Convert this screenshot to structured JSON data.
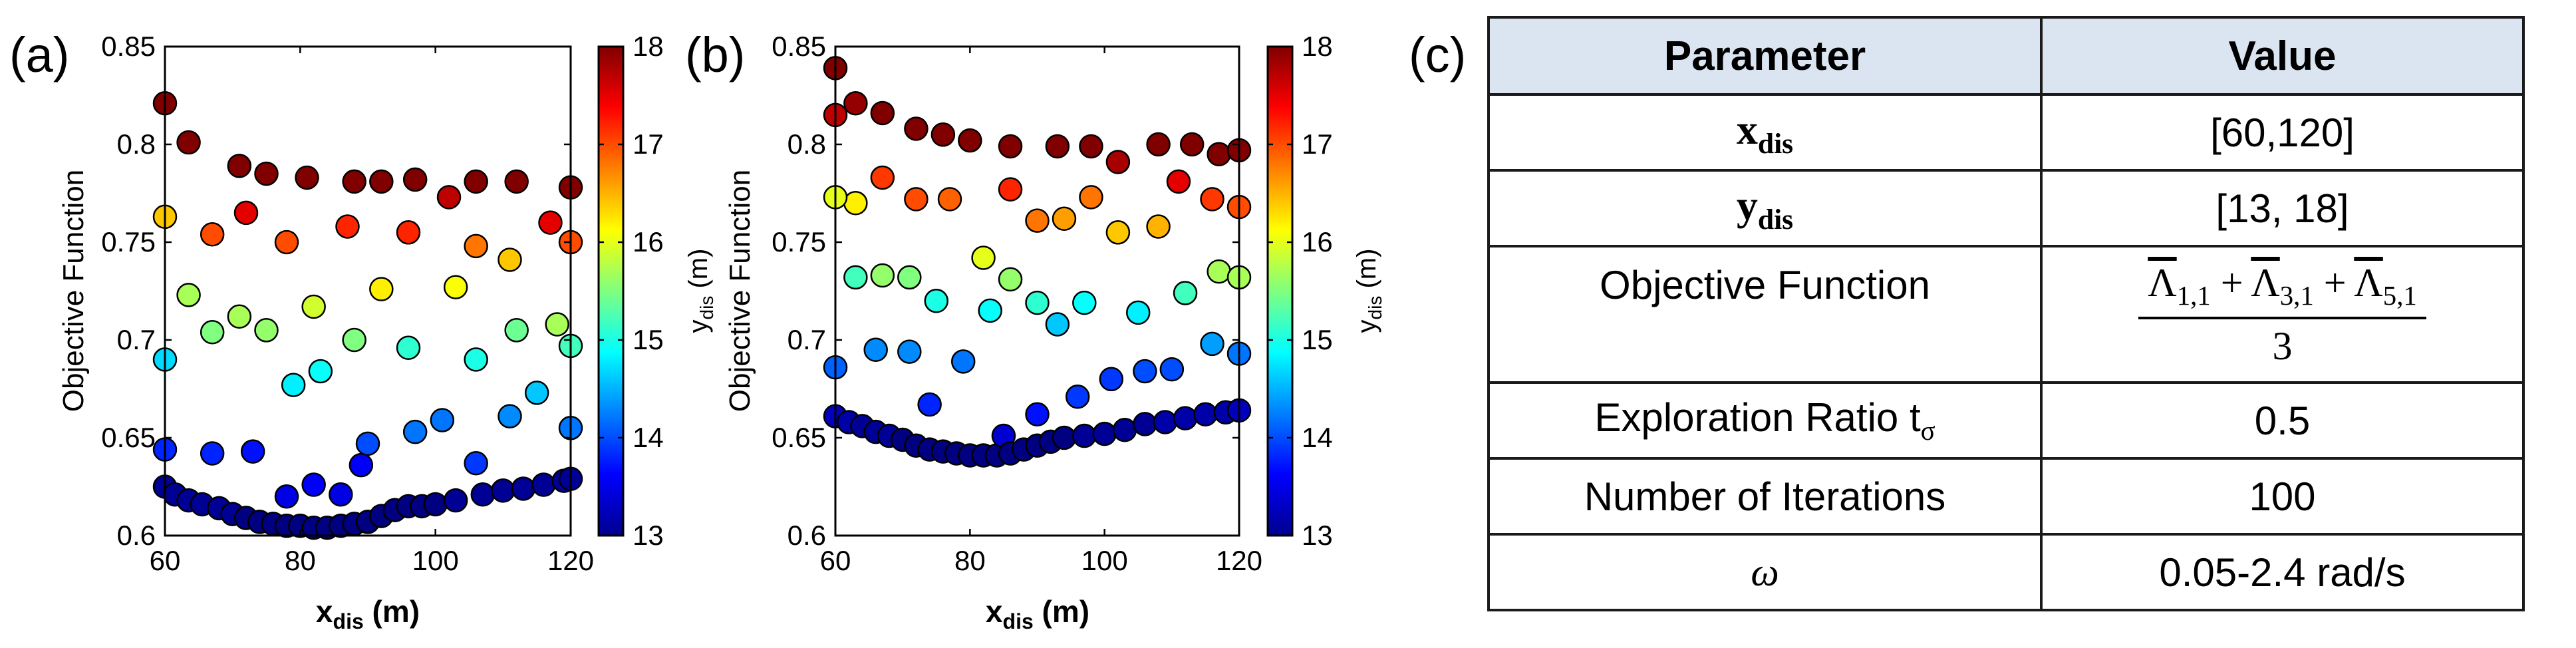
{
  "panel_labels": {
    "a": "(a)",
    "b": "(b)",
    "c": "(c)"
  },
  "colors": {
    "colormap": "jet",
    "marker_edge": "#000000",
    "table_header_bg": "#dae5f1"
  },
  "chart_data": [
    {
      "type": "scatter",
      "panel": "(a)",
      "xlabel_main": "x",
      "xlabel_sub": "dis",
      "xlabel_unit": " (m)",
      "ylabel": "Objective Function",
      "xlim": [
        60,
        120
      ],
      "ylim": [
        0.6,
        0.85
      ],
      "xticks": [
        60,
        80,
        100,
        120
      ],
      "xtick_labels": [
        "60",
        "80",
        "100",
        "120"
      ],
      "yticks": [
        0.6,
        0.65,
        0.7,
        0.75,
        0.8,
        0.85
      ],
      "ytick_labels": [
        "0.6",
        "0.65",
        "0.7",
        "0.75",
        "0.8",
        "0.85"
      ],
      "colorbar": {
        "label_main": "y",
        "label_sub": "dis",
        "label_unit": " (m)",
        "range": [
          13,
          18
        ],
        "ticks": [
          13,
          14,
          15,
          16,
          17,
          18
        ],
        "tick_labels": [
          "13",
          "14",
          "15",
          "16",
          "17",
          "18"
        ]
      },
      "points": [
        {
          "x": 60,
          "y": 0.821,
          "c": 18
        },
        {
          "x": 63.5,
          "y": 0.801,
          "c": 18
        },
        {
          "x": 71,
          "y": 0.789,
          "c": 18
        },
        {
          "x": 75,
          "y": 0.785,
          "c": 18
        },
        {
          "x": 81,
          "y": 0.783,
          "c": 18
        },
        {
          "x": 88,
          "y": 0.781,
          "c": 18
        },
        {
          "x": 92,
          "y": 0.781,
          "c": 18
        },
        {
          "x": 97,
          "y": 0.782,
          "c": 18
        },
        {
          "x": 106,
          "y": 0.781,
          "c": 18
        },
        {
          "x": 112,
          "y": 0.781,
          "c": 18
        },
        {
          "x": 120,
          "y": 0.778,
          "c": 18
        },
        {
          "x": 102,
          "y": 0.773,
          "c": 17.7
        },
        {
          "x": 72,
          "y": 0.765,
          "c": 17.5
        },
        {
          "x": 117,
          "y": 0.76,
          "c": 17.5
        },
        {
          "x": 87,
          "y": 0.758,
          "c": 17.2
        },
        {
          "x": 96,
          "y": 0.755,
          "c": 17.2
        },
        {
          "x": 67,
          "y": 0.754,
          "c": 17
        },
        {
          "x": 78,
          "y": 0.75,
          "c": 17
        },
        {
          "x": 120,
          "y": 0.75,
          "c": 17
        },
        {
          "x": 106,
          "y": 0.748,
          "c": 16.8
        },
        {
          "x": 60,
          "y": 0.763,
          "c": 16.4
        },
        {
          "x": 111,
          "y": 0.741,
          "c": 16.4
        },
        {
          "x": 92,
          "y": 0.726,
          "c": 16.2
        },
        {
          "x": 103,
          "y": 0.727,
          "c": 16.1
        },
        {
          "x": 82,
          "y": 0.717,
          "c": 15.9
        },
        {
          "x": 63.5,
          "y": 0.723,
          "c": 15.7
        },
        {
          "x": 71,
          "y": 0.712,
          "c": 15.7
        },
        {
          "x": 118,
          "y": 0.708,
          "c": 15.7
        },
        {
          "x": 75,
          "y": 0.705,
          "c": 15.6
        },
        {
          "x": 67,
          "y": 0.704,
          "c": 15.5
        },
        {
          "x": 88,
          "y": 0.7,
          "c": 15.5
        },
        {
          "x": 112,
          "y": 0.705,
          "c": 15.4
        },
        {
          "x": 120,
          "y": 0.697,
          "c": 15.2
        },
        {
          "x": 96,
          "y": 0.696,
          "c": 15.1
        },
        {
          "x": 106,
          "y": 0.69,
          "c": 15
        },
        {
          "x": 83,
          "y": 0.684,
          "c": 14.9
        },
        {
          "x": 79,
          "y": 0.677,
          "c": 14.8
        },
        {
          "x": 60,
          "y": 0.69,
          "c": 14.7
        },
        {
          "x": 115,
          "y": 0.673,
          "c": 14.6
        },
        {
          "x": 111,
          "y": 0.661,
          "c": 14.3
        },
        {
          "x": 101,
          "y": 0.659,
          "c": 14.2
        },
        {
          "x": 97,
          "y": 0.653,
          "c": 14.2
        },
        {
          "x": 120,
          "y": 0.655,
          "c": 14.2
        },
        {
          "x": 90,
          "y": 0.647,
          "c": 14
        },
        {
          "x": 106,
          "y": 0.637,
          "c": 13.9
        },
        {
          "x": 60,
          "y": 0.644,
          "c": 13.8
        },
        {
          "x": 67,
          "y": 0.642,
          "c": 13.8
        },
        {
          "x": 73,
          "y": 0.643,
          "c": 13.7
        },
        {
          "x": 89,
          "y": 0.636,
          "c": 13.6
        },
        {
          "x": 82,
          "y": 0.626,
          "c": 13.6
        },
        {
          "x": 86,
          "y": 0.621,
          "c": 13.5
        },
        {
          "x": 78,
          "y": 0.62,
          "c": 13.5
        },
        {
          "x": 60,
          "y": 0.625,
          "c": 13.1
        },
        {
          "x": 61.5,
          "y": 0.621,
          "c": 13.1
        },
        {
          "x": 63.5,
          "y": 0.618,
          "c": 13.1
        },
        {
          "x": 65.5,
          "y": 0.616,
          "c": 13.1
        },
        {
          "x": 68,
          "y": 0.614,
          "c": 13.1
        },
        {
          "x": 70,
          "y": 0.611,
          "c": 13.1
        },
        {
          "x": 72,
          "y": 0.609,
          "c": 13
        },
        {
          "x": 74,
          "y": 0.607,
          "c": 13
        },
        {
          "x": 76,
          "y": 0.606,
          "c": 13
        },
        {
          "x": 78,
          "y": 0.605,
          "c": 13
        },
        {
          "x": 80,
          "y": 0.605,
          "c": 13
        },
        {
          "x": 82,
          "y": 0.604,
          "c": 13
        },
        {
          "x": 84,
          "y": 0.604,
          "c": 13
        },
        {
          "x": 86,
          "y": 0.605,
          "c": 13
        },
        {
          "x": 88,
          "y": 0.606,
          "c": 13
        },
        {
          "x": 90,
          "y": 0.607,
          "c": 13
        },
        {
          "x": 92,
          "y": 0.61,
          "c": 13
        },
        {
          "x": 94,
          "y": 0.613,
          "c": 13
        },
        {
          "x": 96,
          "y": 0.615,
          "c": 13
        },
        {
          "x": 98,
          "y": 0.615,
          "c": 13
        },
        {
          "x": 100,
          "y": 0.616,
          "c": 13
        },
        {
          "x": 103,
          "y": 0.618,
          "c": 13.1
        },
        {
          "x": 107,
          "y": 0.621,
          "c": 13.1
        },
        {
          "x": 110,
          "y": 0.623,
          "c": 13.1
        },
        {
          "x": 113,
          "y": 0.624,
          "c": 13.1
        },
        {
          "x": 116,
          "y": 0.626,
          "c": 13.1
        },
        {
          "x": 119,
          "y": 0.628,
          "c": 13.1
        },
        {
          "x": 120,
          "y": 0.629,
          "c": 13.1
        }
      ]
    },
    {
      "type": "scatter",
      "panel": "(b)",
      "xlabel_main": "x",
      "xlabel_sub": "dis",
      "xlabel_unit": " (m)",
      "ylabel": "Objective Function",
      "xlim": [
        60,
        120
      ],
      "ylim": [
        0.6,
        0.85
      ],
      "xticks": [
        60,
        80,
        100,
        120
      ],
      "xtick_labels": [
        "60",
        "80",
        "100",
        "120"
      ],
      "yticks": [
        0.6,
        0.65,
        0.7,
        0.75,
        0.8,
        0.85
      ],
      "ytick_labels": [
        "0.6",
        "0.65",
        "0.7",
        "0.75",
        "0.8",
        "0.85"
      ],
      "colorbar": {
        "label_main": "y",
        "label_sub": "dis",
        "label_unit": " (m)",
        "range": [
          13,
          18
        ],
        "ticks": [
          13,
          14,
          15,
          16,
          17,
          18
        ],
        "tick_labels": [
          "13",
          "14",
          "15",
          "16",
          "17",
          "18"
        ]
      },
      "points": [
        {
          "x": 60,
          "y": 0.839,
          "c": 18
        },
        {
          "x": 60,
          "y": 0.815,
          "c": 17.7
        },
        {
          "x": 63,
          "y": 0.821,
          "c": 17.9
        },
        {
          "x": 67,
          "y": 0.816,
          "c": 18
        },
        {
          "x": 72,
          "y": 0.808,
          "c": 18
        },
        {
          "x": 76,
          "y": 0.805,
          "c": 18
        },
        {
          "x": 80,
          "y": 0.802,
          "c": 18
        },
        {
          "x": 86,
          "y": 0.799,
          "c": 18
        },
        {
          "x": 93,
          "y": 0.799,
          "c": 18
        },
        {
          "x": 98,
          "y": 0.799,
          "c": 18
        },
        {
          "x": 108,
          "y": 0.8,
          "c": 18
        },
        {
          "x": 113,
          "y": 0.8,
          "c": 18
        },
        {
          "x": 117,
          "y": 0.795,
          "c": 18
        },
        {
          "x": 120,
          "y": 0.797,
          "c": 18
        },
        {
          "x": 102,
          "y": 0.791,
          "c": 17.8
        },
        {
          "x": 111,
          "y": 0.781,
          "c": 17.5
        },
        {
          "x": 67,
          "y": 0.783,
          "c": 17.1
        },
        {
          "x": 86,
          "y": 0.777,
          "c": 17.2
        },
        {
          "x": 116,
          "y": 0.772,
          "c": 17.1
        },
        {
          "x": 120,
          "y": 0.768,
          "c": 17
        },
        {
          "x": 72,
          "y": 0.772,
          "c": 17
        },
        {
          "x": 77,
          "y": 0.772,
          "c": 16.9
        },
        {
          "x": 98,
          "y": 0.773,
          "c": 16.8
        },
        {
          "x": 90,
          "y": 0.761,
          "c": 16.8
        },
        {
          "x": 94,
          "y": 0.762,
          "c": 16.6
        },
        {
          "x": 108,
          "y": 0.758,
          "c": 16.5
        },
        {
          "x": 102,
          "y": 0.755,
          "c": 16.4
        },
        {
          "x": 63,
          "y": 0.77,
          "c": 16.2
        },
        {
          "x": 60,
          "y": 0.773,
          "c": 16
        },
        {
          "x": 82,
          "y": 0.742,
          "c": 16
        },
        {
          "x": 117,
          "y": 0.735,
          "c": 15.7
        },
        {
          "x": 120,
          "y": 0.732,
          "c": 15.7
        },
        {
          "x": 86,
          "y": 0.731,
          "c": 15.6
        },
        {
          "x": 67,
          "y": 0.733,
          "c": 15.6
        },
        {
          "x": 71,
          "y": 0.732,
          "c": 15.5
        },
        {
          "x": 63,
          "y": 0.732,
          "c": 15.2
        },
        {
          "x": 112,
          "y": 0.724,
          "c": 15.2
        },
        {
          "x": 90,
          "y": 0.719,
          "c": 15.1
        },
        {
          "x": 97,
          "y": 0.719,
          "c": 14.9
        },
        {
          "x": 75,
          "y": 0.72,
          "c": 15
        },
        {
          "x": 83,
          "y": 0.715,
          "c": 14.9
        },
        {
          "x": 105,
          "y": 0.714,
          "c": 14.8
        },
        {
          "x": 93,
          "y": 0.708,
          "c": 14.6
        },
        {
          "x": 116,
          "y": 0.698,
          "c": 14.4
        },
        {
          "x": 66,
          "y": 0.695,
          "c": 14.3
        },
        {
          "x": 71,
          "y": 0.694,
          "c": 14.3
        },
        {
          "x": 120,
          "y": 0.693,
          "c": 14.2
        },
        {
          "x": 79,
          "y": 0.689,
          "c": 14.2
        },
        {
          "x": 60,
          "y": 0.686,
          "c": 14.1
        },
        {
          "x": 110,
          "y": 0.685,
          "c": 14
        },
        {
          "x": 106,
          "y": 0.684,
          "c": 14
        },
        {
          "x": 101,
          "y": 0.68,
          "c": 13.9
        },
        {
          "x": 96,
          "y": 0.671,
          "c": 13.9
        },
        {
          "x": 74,
          "y": 0.667,
          "c": 13.8
        },
        {
          "x": 90,
          "y": 0.662,
          "c": 13.7
        },
        {
          "x": 60,
          "y": 0.661,
          "c": 13.3
        },
        {
          "x": 62,
          "y": 0.658,
          "c": 13.2
        },
        {
          "x": 64,
          "y": 0.656,
          "c": 13.1
        },
        {
          "x": 66,
          "y": 0.653,
          "c": 13.1
        },
        {
          "x": 68,
          "y": 0.651,
          "c": 13.1
        },
        {
          "x": 70,
          "y": 0.649,
          "c": 13
        },
        {
          "x": 72,
          "y": 0.646,
          "c": 13
        },
        {
          "x": 74,
          "y": 0.644,
          "c": 13
        },
        {
          "x": 76,
          "y": 0.643,
          "c": 13
        },
        {
          "x": 78,
          "y": 0.642,
          "c": 13
        },
        {
          "x": 80,
          "y": 0.641,
          "c": 13
        },
        {
          "x": 82,
          "y": 0.641,
          "c": 13
        },
        {
          "x": 84,
          "y": 0.641,
          "c": 13
        },
        {
          "x": 85,
          "y": 0.651,
          "c": 13.4
        },
        {
          "x": 86,
          "y": 0.642,
          "c": 13
        },
        {
          "x": 88,
          "y": 0.644,
          "c": 13
        },
        {
          "x": 90,
          "y": 0.646,
          "c": 13
        },
        {
          "x": 92,
          "y": 0.648,
          "c": 13
        },
        {
          "x": 94,
          "y": 0.65,
          "c": 13
        },
        {
          "x": 97,
          "y": 0.651,
          "c": 13.1
        },
        {
          "x": 100,
          "y": 0.652,
          "c": 13.1
        },
        {
          "x": 103,
          "y": 0.654,
          "c": 13.1
        },
        {
          "x": 106,
          "y": 0.657,
          "c": 13.1
        },
        {
          "x": 109,
          "y": 0.658,
          "c": 13.2
        },
        {
          "x": 112,
          "y": 0.66,
          "c": 13.2
        },
        {
          "x": 115,
          "y": 0.662,
          "c": 13.2
        },
        {
          "x": 118,
          "y": 0.663,
          "c": 13.2
        },
        {
          "x": 120,
          "y": 0.664,
          "c": 13.3
        }
      ]
    },
    {
      "type": "table",
      "panel": "(c)",
      "header": {
        "parameter": "Parameter",
        "value": "Value"
      },
      "rows": [
        {
          "param_main": "x",
          "param_sub": "dis",
          "value": "[60,120]"
        },
        {
          "param_main": "y",
          "param_sub": "dis",
          "value": "[13, 18]"
        },
        {
          "param": "Objective Function",
          "numerator": {
            "sym": "Λ",
            "sub1": "1,1",
            "op1": " + ",
            "sub2": "3,1",
            "op2": " + ",
            "sub3": "5,1"
          },
          "denominator": "3"
        },
        {
          "param_text": "Exploration Ratio t",
          "param_sub": "σ",
          "value": "0.5"
        },
        {
          "param": "Number of Iterations",
          "value": "100"
        },
        {
          "param_symbol": "ω",
          "value": "0.05-2.4 rad/s"
        }
      ]
    }
  ]
}
